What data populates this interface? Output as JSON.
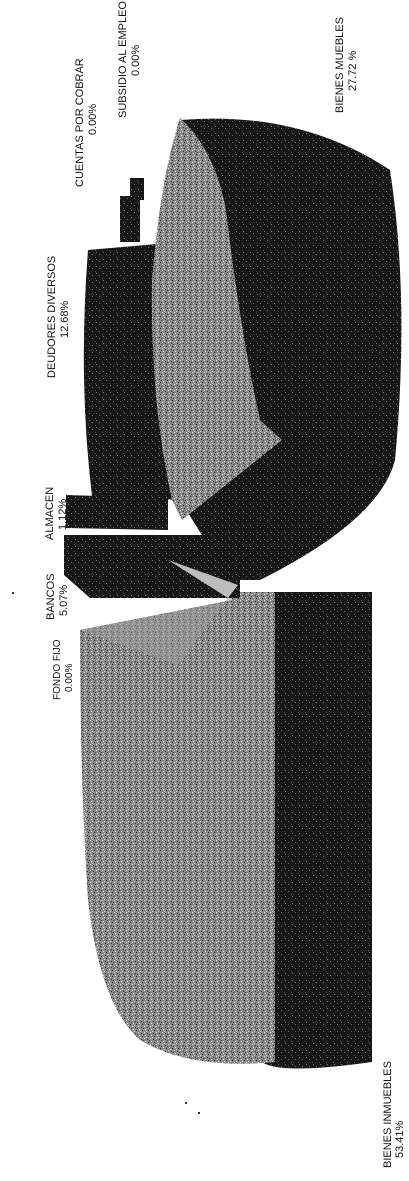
{
  "chart_data": {
    "type": "pie",
    "style": "3d-exploded",
    "orientation": "rotated-90-ccw",
    "title": "",
    "slices": [
      {
        "label": "BIENES INMUEBLES",
        "value_text": "53.41%",
        "value": 53.41
      },
      {
        "label": "FONDO FIJO",
        "value_text": "0.00%",
        "value": 0.0
      },
      {
        "label": "BANCOS",
        "value_text": "5.07%",
        "value": 5.07
      },
      {
        "label": "ALMACEN",
        "value_text": "1.12%",
        "value": 1.12
      },
      {
        "label": "DEUDORES DIVERSOS",
        "value_text": "12.68%",
        "value": 12.68
      },
      {
        "label": "CUENTAS POR COBRAR",
        "value_text": "0.00%",
        "value": 0.0
      },
      {
        "label": "SUBSIDIO AL EMPLEO",
        "value_text": "0.00%",
        "value": 0.0
      },
      {
        "label": "BIENES MUEBLES",
        "value_text": "27.72 %",
        "value": 27.72
      }
    ],
    "colors": {
      "top_face": "#8a8a8a",
      "side_face": "#161616",
      "speckle_light": "#e6e6e6",
      "speckle_dark": "#2a2a2a"
    }
  }
}
